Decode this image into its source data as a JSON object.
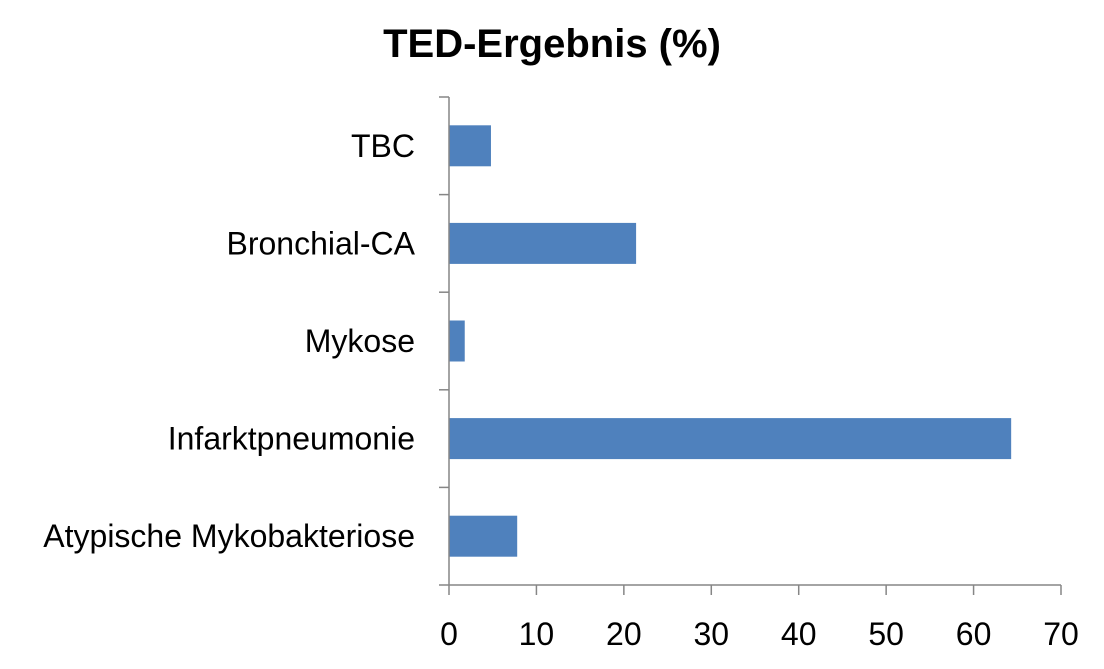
{
  "chart_data": {
    "type": "bar",
    "orientation": "horizontal",
    "title": "TED-Ergebnis (%)",
    "xlabel": "",
    "ylabel": "",
    "categories": [
      "TBC",
      "Bronchial-CA",
      "Mykose",
      "Infarktpneumonie",
      "Atypische Mykobakteriose"
    ],
    "values": [
      4.8,
      21.4,
      1.8,
      64.3,
      7.8
    ],
    "xlim": [
      0,
      70
    ],
    "x_ticks": [
      0,
      10,
      20,
      30,
      40,
      50,
      60,
      70
    ],
    "grid": false,
    "legend": "none",
    "bar_color": "#4F81BD"
  }
}
